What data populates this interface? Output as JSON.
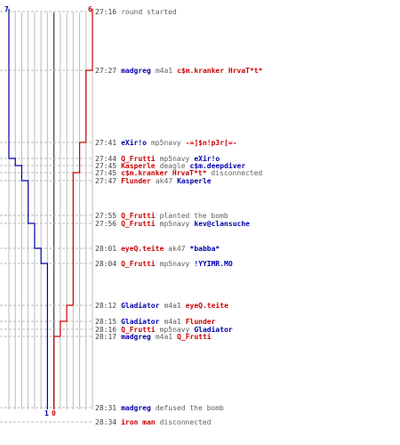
{
  "colors": {
    "team_ct": "#0000aa",
    "team_t": "#cc0000",
    "neutral": "#606060",
    "time": "#404040",
    "grid": "#bbbbbb",
    "axis": "#505050"
  },
  "score": {
    "ct_start": "7",
    "t_start": "6",
    "ct_end": "1",
    "t_end": "0"
  },
  "events": [
    {
      "time": "27:16",
      "parts": [
        {
          "t": "round started",
          "c": "neutral"
        }
      ]
    },
    {
      "time": "27:27",
      "parts": [
        {
          "t": "madgreg",
          "c": "team_ct"
        },
        {
          "t": "m4a1",
          "c": "neutral"
        },
        {
          "t": "c$m.kranker HrvaT*t*",
          "c": "team_t"
        }
      ]
    },
    {
      "time": "27:41",
      "parts": [
        {
          "t": "eXir!o",
          "c": "team_ct"
        },
        {
          "t": "mp5navy",
          "c": "neutral"
        },
        {
          "t": "-=]$n!p3r[=-",
          "c": "team_t"
        }
      ]
    },
    {
      "time": "27:44",
      "parts": [
        {
          "t": "Q_Frutti",
          "c": "team_t"
        },
        {
          "t": "mp5navy",
          "c": "neutral"
        },
        {
          "t": "eXir!o",
          "c": "team_ct"
        }
      ]
    },
    {
      "time": "27:45",
      "parts": [
        {
          "t": "Kasperle",
          "c": "team_t"
        },
        {
          "t": "deagle",
          "c": "neutral"
        },
        {
          "t": "c$m.deepdiver",
          "c": "team_ct"
        }
      ]
    },
    {
      "time": "27:45",
      "parts": [
        {
          "t": "c$m.kranker HrvaT*t*",
          "c": "team_t"
        },
        {
          "t": "disconnected",
          "c": "neutral"
        }
      ]
    },
    {
      "time": "27:47",
      "parts": [
        {
          "t": "Flunder",
          "c": "team_t"
        },
        {
          "t": "ak47",
          "c": "neutral"
        },
        {
          "t": "Kasperle",
          "c": "team_ct"
        }
      ]
    },
    {
      "time": "27:55",
      "parts": [
        {
          "t": "Q_Frutti",
          "c": "team_t"
        },
        {
          "t": "planted the bomb",
          "c": "neutral"
        }
      ]
    },
    {
      "time": "27:56",
      "parts": [
        {
          "t": "Q_Frutti",
          "c": "team_t"
        },
        {
          "t": "mp5navy",
          "c": "neutral"
        },
        {
          "t": "kev@clansuche",
          "c": "team_ct"
        }
      ]
    },
    {
      "time": "28:01",
      "parts": [
        {
          "t": "eyeQ.teite",
          "c": "team_t"
        },
        {
          "t": "ak47",
          "c": "neutral"
        },
        {
          "t": "*babba*",
          "c": "team_ct"
        }
      ]
    },
    {
      "time": "28:04",
      "parts": [
        {
          "t": "Q_Frutti",
          "c": "team_t"
        },
        {
          "t": "mp5navy",
          "c": "neutral"
        },
        {
          "t": "!YYIMR.MO",
          "c": "team_ct"
        }
      ]
    },
    {
      "time": "28:12",
      "parts": [
        {
          "t": "Gladiator",
          "c": "team_ct"
        },
        {
          "t": "m4a1",
          "c": "neutral"
        },
        {
          "t": "eyeQ.teite",
          "c": "team_t"
        }
      ]
    },
    {
      "time": "28:15",
      "parts": [
        {
          "t": "Gladiator",
          "c": "team_ct"
        },
        {
          "t": "m4a1",
          "c": "neutral"
        },
        {
          "t": "Flunder",
          "c": "team_t"
        }
      ]
    },
    {
      "time": "28:16",
      "parts": [
        {
          "t": "Q_Frutti",
          "c": "team_t"
        },
        {
          "t": "mp5navy",
          "c": "neutral"
        },
        {
          "t": "Gladiator",
          "c": "team_ct"
        }
      ]
    },
    {
      "time": "28:17",
      "parts": [
        {
          "t": "madgreg",
          "c": "team_ct"
        },
        {
          "t": "m4a1",
          "c": "neutral"
        },
        {
          "t": "Q_Frutti",
          "c": "team_t"
        }
      ]
    },
    {
      "time": "28:31",
      "parts": [
        {
          "t": "madgreg",
          "c": "team_ct"
        },
        {
          "t": "defused the bomb",
          "c": "neutral"
        }
      ]
    },
    {
      "time": "28:34",
      "parts": [
        {
          "t": "iron man",
          "c": "team_t"
        },
        {
          "t": "disconnected",
          "c": "neutral"
        }
      ]
    }
  ],
  "alive_steps": {
    "ct": [
      {
        "after_event": 0,
        "alive": 7
      },
      {
        "after_event": 3,
        "alive": 6
      },
      {
        "after_event": 4,
        "alive": 5
      },
      {
        "after_event": 6,
        "alive": 4
      },
      {
        "after_event": 8,
        "alive": 3
      },
      {
        "after_event": 9,
        "alive": 2
      },
      {
        "after_event": 10,
        "alive": 1
      },
      {
        "after_event": 13,
        "alive": 1
      }
    ],
    "t": [
      {
        "after_event": 0,
        "alive": 6
      },
      {
        "after_event": 1,
        "alive": 5
      },
      {
        "after_event": 2,
        "alive": 4
      },
      {
        "after_event": 5,
        "alive": 3
      },
      {
        "after_event": 11,
        "alive": 2
      },
      {
        "after_event": 12,
        "alive": 1
      },
      {
        "after_event": 14,
        "alive": 0
      }
    ]
  }
}
